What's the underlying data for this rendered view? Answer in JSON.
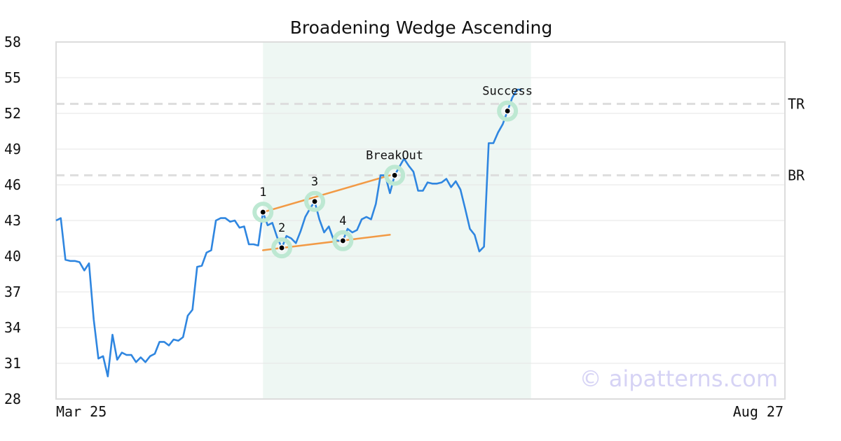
{
  "chart_data": {
    "type": "line",
    "title": "Broadening Wedge Ascending",
    "xlabel": "",
    "ylabel": "",
    "x_range": [
      "2020-03-25",
      "2020-08-27"
    ],
    "x_tick_labels": [
      "Mar 25",
      "Aug 27"
    ],
    "ylim": [
      28,
      58
    ],
    "y_ticks": [
      28,
      31,
      34,
      37,
      40,
      43,
      46,
      49,
      52,
      55,
      58
    ],
    "grid": true,
    "colors": {
      "price_line": "#2f86e0",
      "trend_lines": "#f29a45",
      "pattern_zone": "#eef7f3",
      "marker_halo": "#bde8d2",
      "reference_lines": "#dddddd",
      "watermark": "#d6d3f5"
    },
    "series": [
      {
        "points": [
          [
            "2020-03-25",
            43.0
          ],
          [
            "2020-03-26",
            43.2
          ],
          [
            "2020-03-27",
            39.7
          ],
          [
            "2020-03-28",
            39.6
          ],
          [
            "2020-03-29",
            39.6
          ],
          [
            "2020-03-30",
            39.5
          ],
          [
            "2020-03-31",
            38.8
          ],
          [
            "2020-04-01",
            39.4
          ],
          [
            "2020-04-02",
            34.7
          ],
          [
            "2020-04-03",
            31.4
          ],
          [
            "2020-04-04",
            31.6
          ],
          [
            "2020-04-05",
            29.9
          ],
          [
            "2020-04-06",
            33.4
          ],
          [
            "2020-04-07",
            31.3
          ],
          [
            "2020-04-08",
            31.9
          ],
          [
            "2020-04-09",
            31.7
          ],
          [
            "2020-04-10",
            31.7
          ],
          [
            "2020-04-11",
            31.1
          ],
          [
            "2020-04-12",
            31.5
          ],
          [
            "2020-04-13",
            31.1
          ],
          [
            "2020-04-14",
            31.6
          ],
          [
            "2020-04-15",
            31.8
          ],
          [
            "2020-04-16",
            32.8
          ],
          [
            "2020-04-17",
            32.8
          ],
          [
            "2020-04-18",
            32.5
          ],
          [
            "2020-04-19",
            33.0
          ],
          [
            "2020-04-20",
            32.9
          ],
          [
            "2020-04-21",
            33.2
          ],
          [
            "2020-04-22",
            35.0
          ],
          [
            "2020-04-23",
            35.5
          ],
          [
            "2020-04-24",
            39.1
          ],
          [
            "2020-04-25",
            39.2
          ],
          [
            "2020-04-26",
            40.3
          ],
          [
            "2020-04-27",
            40.5
          ],
          [
            "2020-04-28",
            43.0
          ],
          [
            "2020-04-29",
            43.2
          ],
          [
            "2020-04-30",
            43.2
          ],
          [
            "2020-05-01",
            42.9
          ],
          [
            "2020-05-02",
            43.0
          ],
          [
            "2020-05-03",
            42.4
          ],
          [
            "2020-05-04",
            42.5
          ],
          [
            "2020-05-05",
            41.0
          ],
          [
            "2020-05-06",
            41.0
          ],
          [
            "2020-05-07",
            40.9
          ],
          [
            "2020-05-08",
            43.7
          ],
          [
            "2020-05-09",
            42.6
          ],
          [
            "2020-05-10",
            42.8
          ],
          [
            "2020-05-11",
            41.6
          ],
          [
            "2020-05-12",
            40.7
          ],
          [
            "2020-05-13",
            41.7
          ],
          [
            "2020-05-14",
            41.5
          ],
          [
            "2020-05-15",
            41.1
          ],
          [
            "2020-05-16",
            42.1
          ],
          [
            "2020-05-17",
            43.3
          ],
          [
            "2020-05-18",
            44.0
          ],
          [
            "2020-05-19",
            44.6
          ],
          [
            "2020-05-20",
            43.1
          ],
          [
            "2020-05-21",
            42.0
          ],
          [
            "2020-05-22",
            42.5
          ],
          [
            "2020-05-23",
            41.4
          ],
          [
            "2020-05-24",
            41.3
          ],
          [
            "2020-05-25",
            41.3
          ],
          [
            "2020-05-26",
            42.3
          ],
          [
            "2020-05-27",
            42.0
          ],
          [
            "2020-05-28",
            42.2
          ],
          [
            "2020-05-29",
            43.1
          ],
          [
            "2020-05-30",
            43.3
          ],
          [
            "2020-05-31",
            43.1
          ],
          [
            "2020-06-01",
            44.4
          ],
          [
            "2020-06-02",
            46.8
          ],
          [
            "2020-06-03",
            46.8
          ],
          [
            "2020-06-04",
            45.3
          ],
          [
            "2020-06-05",
            46.8
          ],
          [
            "2020-06-06",
            47.5
          ],
          [
            "2020-06-07",
            48.2
          ],
          [
            "2020-06-08",
            47.6
          ],
          [
            "2020-06-09",
            47.1
          ],
          [
            "2020-06-10",
            45.5
          ],
          [
            "2020-06-11",
            45.5
          ],
          [
            "2020-06-12",
            46.2
          ],
          [
            "2020-06-13",
            46.1
          ],
          [
            "2020-06-14",
            46.1
          ],
          [
            "2020-06-15",
            46.2
          ],
          [
            "2020-06-16",
            46.5
          ],
          [
            "2020-06-17",
            45.8
          ],
          [
            "2020-06-18",
            46.3
          ],
          [
            "2020-06-19",
            45.6
          ],
          [
            "2020-06-20",
            44.0
          ],
          [
            "2020-06-21",
            42.3
          ],
          [
            "2020-06-22",
            41.8
          ],
          [
            "2020-06-23",
            40.4
          ],
          [
            "2020-06-24",
            40.8
          ],
          [
            "2020-06-25",
            49.5
          ],
          [
            "2020-06-26",
            49.5
          ],
          [
            "2020-06-27",
            50.4
          ],
          [
            "2020-06-28",
            51.1
          ],
          [
            "2020-06-29",
            52.2
          ],
          [
            "2020-06-30",
            53.3
          ],
          [
            "2020-07-01",
            54.0
          ],
          [
            "2020-07-02",
            54.0
          ]
        ]
      }
    ],
    "trend_lines": [
      {
        "from": [
          "2020-05-08",
          43.7
        ],
        "to": [
          "2020-06-04",
          46.8
        ]
      },
      {
        "from": [
          "2020-05-08",
          40.5
        ],
        "to": [
          "2020-06-04",
          41.8
        ]
      }
    ],
    "pattern_zone": [
      "2020-05-08",
      "2020-07-04"
    ],
    "markers": [
      {
        "label": "1",
        "x": "2020-05-08",
        "y": 43.7
      },
      {
        "label": "2",
        "x": "2020-05-12",
        "y": 40.7
      },
      {
        "label": "3",
        "x": "2020-05-19",
        "y": 44.6
      },
      {
        "label": "4",
        "x": "2020-05-25",
        "y": 41.3
      },
      {
        "label": "BreakOut",
        "x": "2020-06-05",
        "y": 46.8
      },
      {
        "label": "Success",
        "x": "2020-06-29",
        "y": 52.2
      }
    ],
    "reference_lines": [
      {
        "label": "TR",
        "y": 52.8
      },
      {
        "label": "BR",
        "y": 46.8
      }
    ],
    "watermark": "© aipatterns.com"
  }
}
